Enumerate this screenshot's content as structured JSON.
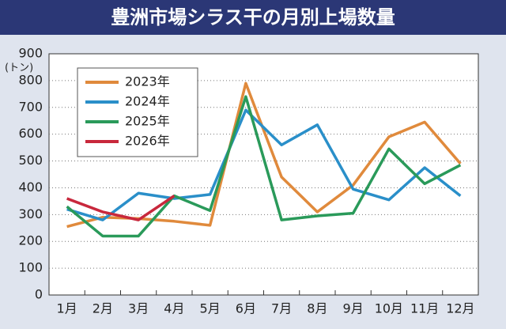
{
  "chart_data": {
    "type": "line",
    "title": "豊洲市場シラス干の月別上場数量",
    "y_unit": "(トン)",
    "categories": [
      "1月",
      "2月",
      "3月",
      "4月",
      "5月",
      "6月",
      "7月",
      "8月",
      "9月",
      "10月",
      "11月",
      "12月"
    ],
    "series": [
      {
        "name": "2023年",
        "color": "#e08a3c",
        "values": [
          255,
          290,
          285,
          275,
          260,
          790,
          440,
          310,
          410,
          590,
          645,
          490
        ]
      },
      {
        "name": "2024年",
        "color": "#2a8fc9",
        "values": [
          320,
          280,
          380,
          360,
          375,
          690,
          560,
          635,
          395,
          355,
          475,
          370
        ]
      },
      {
        "name": "2025年",
        "color": "#2a9a5a",
        "values": [
          330,
          220,
          220,
          370,
          315,
          740,
          280,
          295,
          305,
          545,
          415,
          485
        ]
      },
      {
        "name": "2026年",
        "color": "#c8283c",
        "values": [
          360,
          310,
          280,
          370,
          null,
          null,
          null,
          null,
          null,
          null,
          null,
          null
        ]
      }
    ],
    "ylim": [
      0,
      900
    ],
    "yticks": [
      0,
      100,
      200,
      300,
      400,
      500,
      600,
      700,
      800,
      900
    ],
    "grid": true,
    "legend": "top-left"
  }
}
